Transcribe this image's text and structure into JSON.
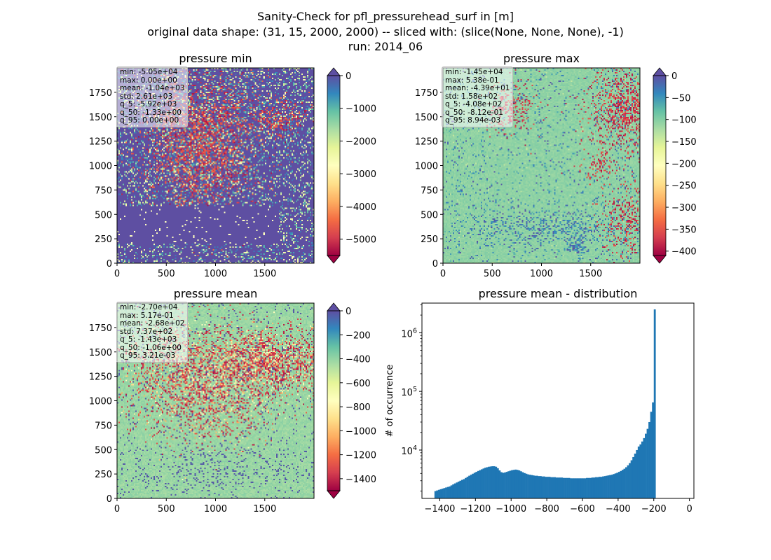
{
  "figure": {
    "title_lines": [
      "Sanity-Check for pfl_pressurehead_surf in [m]",
      "original data shape: (31, 15, 2000, 2000) -- sliced with: (slice(None, None, None), -1)",
      "run: 2014_06"
    ]
  },
  "colormap": {
    "name": "Spectral",
    "stops": [
      "#9e0142",
      "#d53e4f",
      "#f46d43",
      "#fdae61",
      "#fee08b",
      "#ffffbf",
      "#e6f598",
      "#abdda4",
      "#66c2a5",
      "#3288bd",
      "#5e4fa2"
    ],
    "over_color": "#5e4fa2",
    "under_color": "#9e0142"
  },
  "chart_data": [
    {
      "type": "heatmap",
      "title": "pressure min",
      "xlim": [
        0,
        2000
      ],
      "ylim": [
        0,
        2000
      ],
      "x_ticks": [
        "0",
        "500",
        "1000",
        "1500"
      ],
      "y_ticks": [
        "0",
        "250",
        "500",
        "750",
        "1000",
        "1250",
        "1500",
        "1750"
      ],
      "colorbar": {
        "vmin": -5500,
        "vmax": 0,
        "ticks": [
          "0",
          "−1000",
          "−2000",
          "−3000",
          "−4000",
          "−5000"
        ],
        "tick_values": [
          0,
          -1000,
          -2000,
          -3000,
          -4000,
          -5000
        ],
        "extend": "both"
      },
      "stats": [
        "min: -5.05e+04",
        "max: 0.00e+00",
        "mean: -1.04e+03",
        "std: 2.61e+03",
        "q_5: -5.92e+03",
        "q_50: -1.33e+00",
        "q_95: 0.00e+00"
      ]
    },
    {
      "type": "heatmap",
      "title": "pressure max",
      "xlim": [
        0,
        2000
      ],
      "ylim": [
        0,
        2000
      ],
      "x_ticks": [
        "0",
        "500",
        "1000",
        "1500"
      ],
      "y_ticks": [
        "0",
        "250",
        "500",
        "750",
        "1000",
        "1250",
        "1500",
        "1750"
      ],
      "colorbar": {
        "vmin": -410,
        "vmax": 0,
        "ticks": [
          "0",
          "−50",
          "−100",
          "−150",
          "−200",
          "−250",
          "−300",
          "−350",
          "−400"
        ],
        "tick_values": [
          0,
          -50,
          -100,
          -150,
          -200,
          -250,
          -300,
          -350,
          -400
        ],
        "extend": "both"
      },
      "stats": [
        "min: -1.45e+04",
        "max: 5.38e-01",
        "mean: -4.39e+01",
        "std: 1.58e+02",
        "q_5: -4.08e+02",
        "q_50: -8.12e-01",
        "q_95: 8.94e-03"
      ]
    },
    {
      "type": "heatmap",
      "title": "pressure mean",
      "xlim": [
        0,
        2000
      ],
      "ylim": [
        0,
        2000
      ],
      "x_ticks": [
        "0",
        "500",
        "1000",
        "1500"
      ],
      "y_ticks": [
        "0",
        "250",
        "500",
        "750",
        "1000",
        "1250",
        "1500",
        "1750"
      ],
      "colorbar": {
        "vmin": -1500,
        "vmax": 0,
        "ticks": [
          "0",
          "−200",
          "−400",
          "−600",
          "−800",
          "−1000",
          "−1200",
          "−1400"
        ],
        "tick_values": [
          0,
          -200,
          -400,
          -600,
          -800,
          -1000,
          -1200,
          -1400
        ],
        "extend": "both"
      },
      "stats": [
        "min: -2.70e+04",
        "max: 5.17e-01",
        "mean: -2.68e+02",
        "std: 7.37e+02",
        "q_5: -1.43e+03",
        "q_50: -1.06e+00",
        "q_95: 3.21e-03"
      ]
    },
    {
      "type": "bar",
      "title": "pressure mean - distribution",
      "xlabel": "",
      "ylabel": "# of occurrence",
      "yscale": "log",
      "xlim": [
        -1500,
        25
      ],
      "ylim": [
        1500,
        3200000
      ],
      "x_ticks": [
        "−1400",
        "−1200",
        "−1000",
        "−800",
        "−600",
        "−400",
        "−200",
        "0"
      ],
      "x_tick_values": [
        -1400,
        -1200,
        -1000,
        -800,
        -600,
        -400,
        -200,
        0
      ],
      "y_ticks": [
        "10",
        "10",
        "10"
      ],
      "y_tick_exponents": [
        "4",
        "5",
        "6"
      ],
      "y_tick_values": [
        10000,
        100000,
        1000000
      ],
      "bin_width": 10,
      "bin_start": -1430,
      "color": "#1f77b4",
      "values": [
        2000,
        2050,
        2100,
        2150,
        2200,
        2250,
        2300,
        2350,
        2400,
        2500,
        2600,
        2700,
        2800,
        2900,
        3000,
        3100,
        3200,
        3350,
        3500,
        3650,
        3800,
        3950,
        4100,
        4250,
        4400,
        4550,
        4700,
        4850,
        5000,
        5100,
        5200,
        5250,
        5300,
        5300,
        5200,
        4900,
        4500,
        4200,
        4100,
        4150,
        4250,
        4350,
        4450,
        4550,
        4600,
        4650,
        4600,
        4500,
        4350,
        4200,
        4050,
        3950,
        3850,
        3800,
        3750,
        3700,
        3650,
        3650,
        3600,
        3600,
        3550,
        3550,
        3500,
        3500,
        3500,
        3450,
        3450,
        3450,
        3400,
        3400,
        3400,
        3400,
        3350,
        3350,
        3350,
        3350,
        3300,
        3300,
        3300,
        3300,
        3300,
        3300,
        3300,
        3300,
        3300,
        3350,
        3350,
        3350,
        3400,
        3400,
        3450,
        3450,
        3500,
        3500,
        3550,
        3600,
        3650,
        3700,
        3750,
        3800,
        3900,
        4000,
        4100,
        4250,
        4400,
        4600,
        4800,
        5100,
        5500,
        6000,
        6700,
        7600,
        8700,
        10000,
        11500,
        12500,
        14000,
        16000,
        19000,
        23000,
        30000,
        45000,
        65000,
        2500000
      ]
    }
  ]
}
